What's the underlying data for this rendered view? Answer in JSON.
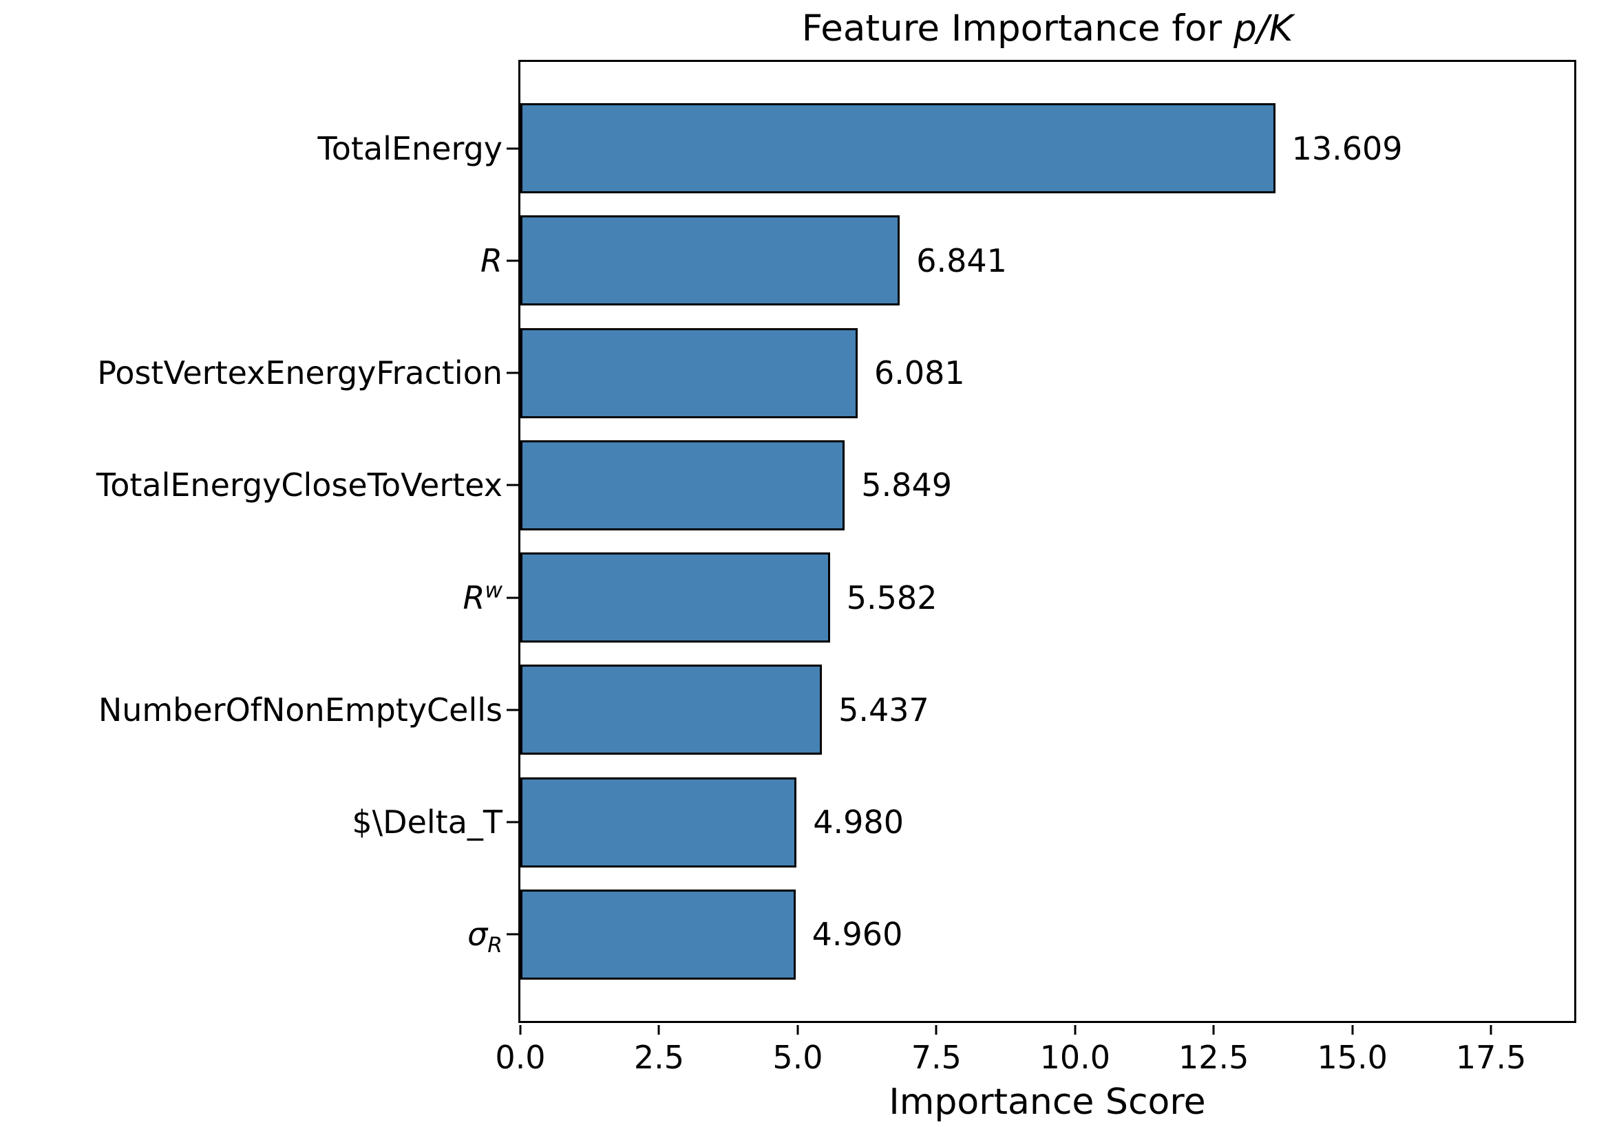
{
  "chart_data": {
    "type": "bar",
    "orientation": "horizontal",
    "title_prefix": "Feature Importance for ",
    "title_math": "p/K",
    "xlabel": "Importance Score",
    "categories": [
      {
        "text": "TotalEnergy",
        "italic": false
      },
      {
        "text": "R",
        "italic": true
      },
      {
        "text": "PostVertexEnergyFraction",
        "italic": false
      },
      {
        "text": "TotalEnergyCloseToVertex",
        "italic": false
      },
      {
        "text": "R",
        "sup": "w",
        "italic": true
      },
      {
        "text": "NumberOfNonEmptyCells",
        "italic": false
      },
      {
        "text": "$\\Delta_T",
        "italic": false
      },
      {
        "text": "σ",
        "sub": "R",
        "italic": true
      }
    ],
    "values": [
      13.609,
      6.841,
      6.081,
      5.849,
      5.582,
      5.437,
      4.98,
      4.96
    ],
    "value_labels": [
      "13.609",
      "6.841",
      "6.081",
      "5.849",
      "5.582",
      "5.437",
      "4.980",
      "4.960"
    ],
    "xticks": [
      "0.0",
      "2.5",
      "5.0",
      "7.5",
      "10.0",
      "12.5",
      "15.0",
      "17.5"
    ],
    "xlim": [
      0,
      19.0
    ],
    "grid": false,
    "legend": false,
    "bar_color": "#4682b4",
    "bar_edge_color": "#000000",
    "text_color": "#000000",
    "background": "#ffffff"
  }
}
